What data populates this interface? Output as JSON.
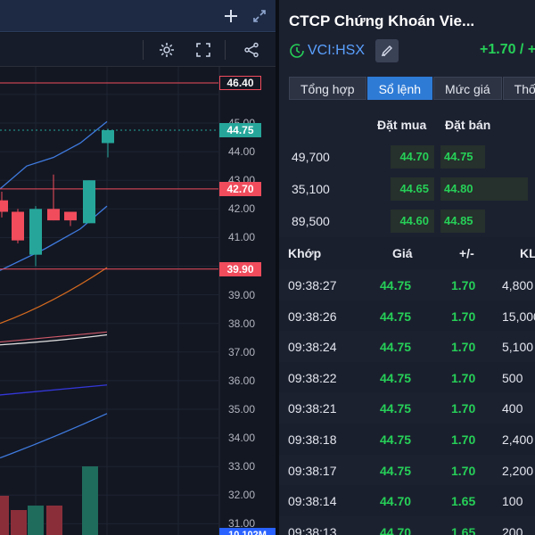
{
  "chart": {
    "price_tags": [
      {
        "label": "46.40",
        "color": "#f04c5c",
        "filled": false
      },
      {
        "label": "44.75",
        "color": "#26a69a",
        "filled": true
      },
      {
        "label": "42.70",
        "color": "#f04c5c",
        "filled": true
      },
      {
        "label": "39.90",
        "color": "#f04c5c",
        "filled": true
      }
    ],
    "axis_ticks": [
      "45.00",
      "44.00",
      "43.00",
      "42.00",
      "41.00",
      "40.00",
      "39.00",
      "38.00",
      "37.00",
      "36.00",
      "35.00",
      "34.00",
      "33.00",
      "32.00",
      "31.00"
    ],
    "volume_tag": "10.102M",
    "icons": [
      "plus-icon",
      "expand-icon",
      "gear-icon",
      "fullscreen-icon",
      "share-icon"
    ]
  },
  "chart_data": {
    "type": "candlestick",
    "title": "",
    "y_range": [
      31,
      46.9
    ],
    "candles": [
      {
        "open": 42.3,
        "high": 42.6,
        "low": 41.7,
        "close": 41.9
      },
      {
        "open": 41.9,
        "high": 42.0,
        "low": 40.8,
        "close": 40.9
      },
      {
        "open": 40.4,
        "high": 42.1,
        "low": 40.0,
        "close": 42.0
      },
      {
        "open": 42.0,
        "high": 43.2,
        "low": 41.6,
        "close": 41.6
      },
      {
        "open": 41.9,
        "high": 41.9,
        "low": 41.4,
        "close": 41.6
      },
      {
        "open": 41.5,
        "high": 43.0,
        "low": 41.5,
        "close": 43.0
      },
      {
        "open": 44.3,
        "high": 44.8,
        "low": 43.8,
        "close": 44.75
      }
    ],
    "volume": [
      32,
      40,
      42,
      38,
      30,
      85,
      12
    ],
    "reference_lines": [
      46.4,
      42.7,
      39.9
    ],
    "grid": true
  },
  "book": {
    "title": "CTCP Chứng Khoán Vie...",
    "ticker": "VCI:HSX",
    "change": "+1.70 / +",
    "tabs": [
      "Tổng hợp",
      "Sổ lệnh",
      "Mức giá",
      "Thố"
    ],
    "active_tab": 1,
    "header_bid": "Đặt mua",
    "header_ask": "Đặt bán",
    "levels": [
      {
        "volume": "49,700",
        "bid": "44.70",
        "ask": "44.75"
      },
      {
        "volume": "35,100",
        "bid": "44.65",
        "ask": "44.80"
      },
      {
        "volume": "89,500",
        "bid": "44.60",
        "ask": "44.85"
      }
    ],
    "trades_header": {
      "time": "Khớp",
      "price": "Giá",
      "chg": "+/-",
      "vol": "KL"
    },
    "trades": [
      {
        "time": "09:38:27",
        "price": "44.75",
        "chg": "1.70",
        "vol": "4,800"
      },
      {
        "time": "09:38:26",
        "price": "44.75",
        "chg": "1.70",
        "vol": "15,000"
      },
      {
        "time": "09:38:24",
        "price": "44.75",
        "chg": "1.70",
        "vol": "5,100"
      },
      {
        "time": "09:38:22",
        "price": "44.75",
        "chg": "1.70",
        "vol": "500"
      },
      {
        "time": "09:38:21",
        "price": "44.75",
        "chg": "1.70",
        "vol": "400"
      },
      {
        "time": "09:38:18",
        "price": "44.75",
        "chg": "1.70",
        "vol": "2,400"
      },
      {
        "time": "09:38:17",
        "price": "44.75",
        "chg": "1.70",
        "vol": "2,200"
      },
      {
        "time": "09:38:14",
        "price": "44.70",
        "chg": "1.65",
        "vol": "100"
      },
      {
        "time": "09:38:13",
        "price": "44.70",
        "chg": "1.65",
        "vol": "200"
      }
    ]
  }
}
